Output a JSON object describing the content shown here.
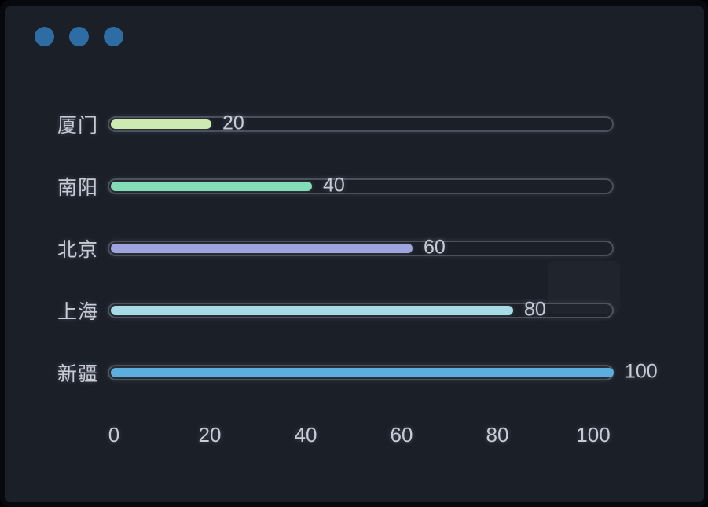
{
  "window": {
    "background_color": "#1a1f28",
    "frame_color": "#07090e",
    "traffic_dot_color": "#2e6da4",
    "traffic_dot_count": 3
  },
  "chart_data": {
    "type": "bar",
    "orientation": "horizontal",
    "title": "",
    "xlabel": "",
    "ylabel": "",
    "categories": [
      "厦门",
      "南阳",
      "北京",
      "上海",
      "新疆"
    ],
    "values": [
      20,
      40,
      60,
      80,
      100
    ],
    "value_labels": [
      "20",
      "40",
      "60",
      "80",
      "100"
    ],
    "bar_colors": [
      "#cdeab3",
      "#82dcb5",
      "#9ea4dd",
      "#a5dce8",
      "#5caede"
    ],
    "xlim": [
      0,
      100
    ],
    "x_ticks": [
      "0",
      "20",
      "40",
      "60",
      "80",
      "100"
    ],
    "x_tick_values": [
      0,
      20,
      40,
      60,
      80,
      100
    ],
    "grid": false,
    "legend": false,
    "track_border_color": "#4a515b",
    "text_color": "#c9cbd4"
  }
}
